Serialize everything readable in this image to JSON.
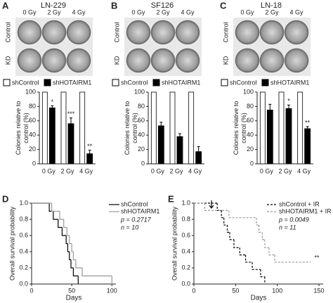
{
  "chart_data": [
    {
      "type": "bar",
      "panel": "A",
      "title": "LN-229",
      "image_columns": [
        "0 Gy",
        "2 Gy",
        "4 Gy"
      ],
      "image_rows": [
        "Control",
        "KD"
      ],
      "categories": [
        "0 Gy",
        "2 Gy",
        "4 Gy"
      ],
      "series": [
        {
          "name": "shControl",
          "color": "#ffffff",
          "values": [
            100,
            100,
            100
          ]
        },
        {
          "name": "shHOTAIRM1",
          "color": "#000000",
          "values": [
            78,
            56,
            14
          ],
          "errors": [
            3,
            8,
            5
          ],
          "significance": [
            "*",
            "***",
            "**"
          ]
        }
      ],
      "ylabel": [
        "Colonies relative to",
        "control (%)"
      ],
      "ylim": [
        0,
        100
      ],
      "yticks": [
        0,
        20,
        40,
        60,
        80,
        100
      ]
    },
    {
      "type": "bar",
      "panel": "B",
      "title": "SF126",
      "image_columns": [
        "0 Gy",
        "2 Gy",
        "4 Gy"
      ],
      "image_rows": [
        "Control",
        "KD"
      ],
      "categories": [
        "0 Gy",
        "2 Gy",
        "4 Gy"
      ],
      "series": [
        {
          "name": "shControl",
          "color": "#ffffff",
          "values": [
            100,
            100,
            100
          ]
        },
        {
          "name": "shHOTAIRM1",
          "color": "#000000",
          "values": [
            53,
            38,
            17
          ],
          "errors": [
            5,
            4,
            7
          ]
        }
      ],
      "ylabel": [
        "Colonies relative to",
        "control (%)"
      ],
      "ylim": [
        0,
        100
      ],
      "yticks": [
        0,
        20,
        40,
        60,
        80,
        100
      ]
    },
    {
      "type": "bar",
      "panel": "C",
      "title": "LN-18",
      "image_columns": [
        "0 Gy",
        "2 Gy",
        "4 Gy"
      ],
      "image_rows": [
        "Control",
        "KD"
      ],
      "categories": [
        "0 Gy",
        "2 Gy",
        "4 Gy"
      ],
      "series": [
        {
          "name": "shControl",
          "color": "#ffffff",
          "values": [
            100,
            100,
            100
          ]
        },
        {
          "name": "shHOTAIRM1",
          "color": "#000000",
          "values": [
            75,
            77,
            49
          ],
          "errors": [
            8,
            5,
            3
          ],
          "significance": [
            null,
            "*",
            "**"
          ]
        }
      ],
      "ylabel": [
        "Colonies relative to",
        "control (%)"
      ],
      "ylim": [
        0,
        100
      ],
      "yticks": [
        0,
        20,
        40,
        60,
        80,
        100
      ]
    },
    {
      "type": "survival",
      "panel": "D",
      "xlabel": "Days",
      "ylabel": "Overall survival probability",
      "xlim": [
        0,
        105
      ],
      "xticks": [
        0,
        50,
        100
      ],
      "ylim": [
        0,
        1
      ],
      "yticks": [
        {
          "value": 0,
          "label": "0.0"
        },
        {
          "value": 0.2,
          "label": "0.2"
        },
        {
          "value": 0.4,
          "label": "0.4"
        },
        {
          "value": 0.6,
          "label": "0.6"
        },
        {
          "value": 0.8,
          "label": "0.8"
        },
        {
          "value": 1,
          "label": "1.0"
        }
      ],
      "series": [
        {
          "name": "shControl",
          "color": "#000000",
          "dashed": false,
          "x": [
            0,
            22,
            27,
            33,
            38,
            43,
            45,
            47,
            49,
            52,
            58
          ],
          "values": [
            1,
            0.9,
            0.8,
            0.7,
            0.6,
            0.5,
            0.4,
            0.3,
            0.2,
            0.1,
            0
          ]
        },
        {
          "name": "shHOTAIRM1",
          "color": "#999999",
          "dashed": false,
          "x": [
            0,
            25,
            35,
            40,
            44,
            47,
            50,
            52,
            55,
            63,
            100
          ],
          "values": [
            1,
            0.9,
            0.8,
            0.7,
            0.6,
            0.5,
            0.4,
            0.3,
            0.2,
            0.1,
            0
          ]
        }
      ],
      "annotations": [
        "p = 0.2717",
        "n = 10"
      ]
    },
    {
      "type": "survival",
      "panel": "E",
      "xlabel": "Days",
      "ylabel": "Overall survival probability",
      "xlim": [
        0,
        155
      ],
      "xticks": [
        0,
        50,
        100,
        150
      ],
      "ylim": [
        0,
        1
      ],
      "yticks": [
        {
          "value": 0,
          "label": "0.0"
        },
        {
          "value": 0.2,
          "label": "0.2"
        },
        {
          "value": 0.4,
          "label": "0.4"
        },
        {
          "value": 0.6,
          "label": "0.6"
        },
        {
          "value": 0.8,
          "label": "0.8"
        },
        {
          "value": 1,
          "label": "1.0"
        }
      ],
      "series": [
        {
          "name": "shControl + IR",
          "color": "#000000",
          "dashed": true,
          "x": [
            0,
            28,
            33,
            36,
            40,
            43,
            48,
            55,
            62,
            70,
            80,
            85
          ],
          "values": [
            1,
            0.91,
            0.82,
            0.73,
            0.64,
            0.55,
            0.45,
            0.36,
            0.27,
            0.18,
            0.09,
            0
          ]
        },
        {
          "name": "shHOTAIRM1 + IR",
          "color": "#999999",
          "dashed": true,
          "x": [
            0,
            13,
            42,
            75,
            78,
            82,
            85,
            90,
            97,
            140
          ],
          "values": [
            1,
            0.91,
            0.82,
            0.73,
            0.64,
            0.55,
            0.45,
            0.36,
            0.27,
            0.27
          ]
        }
      ],
      "annotations": [
        "p = 0.0049",
        "n = 11"
      ],
      "significance": "**"
    }
  ]
}
